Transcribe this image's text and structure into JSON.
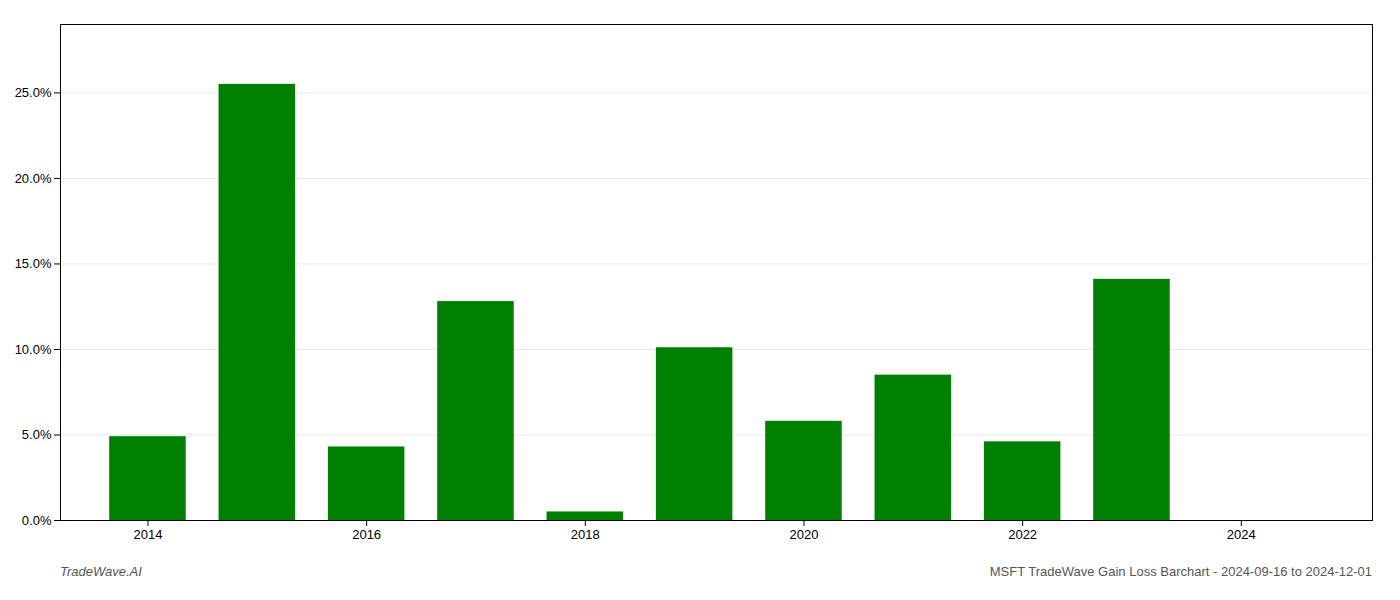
{
  "chart_data": {
    "type": "bar",
    "x": [
      2014,
      2015,
      2016,
      2017,
      2018,
      2019,
      2020,
      2021,
      2022,
      2023,
      2024
    ],
    "values": [
      0.049,
      0.255,
      0.043,
      0.128,
      0.005,
      0.101,
      0.058,
      0.085,
      0.046,
      0.141,
      0.0
    ],
    "color": "#008000",
    "xlim": [
      2013.2,
      2025.2
    ],
    "xticks": [
      2014,
      2016,
      2018,
      2020,
      2022,
      2024
    ],
    "ylim": [
      0,
      0.29
    ],
    "yticks": [
      {
        "value": 0,
        "label": "0.0%"
      },
      {
        "value": 0.05,
        "label": "5.0%"
      },
      {
        "value": 0.1,
        "label": "10.0%"
      },
      {
        "value": 0.15,
        "label": "15.0%"
      },
      {
        "value": 0.2,
        "label": "20.0%"
      },
      {
        "value": 0.25,
        "label": "25.0%"
      }
    ],
    "grid": true,
    "annotations": [
      "TradeWave.AI",
      "MSFT TradeWave Gain Loss Barchart - 2024-09-16 to 2024-12-01"
    ]
  }
}
